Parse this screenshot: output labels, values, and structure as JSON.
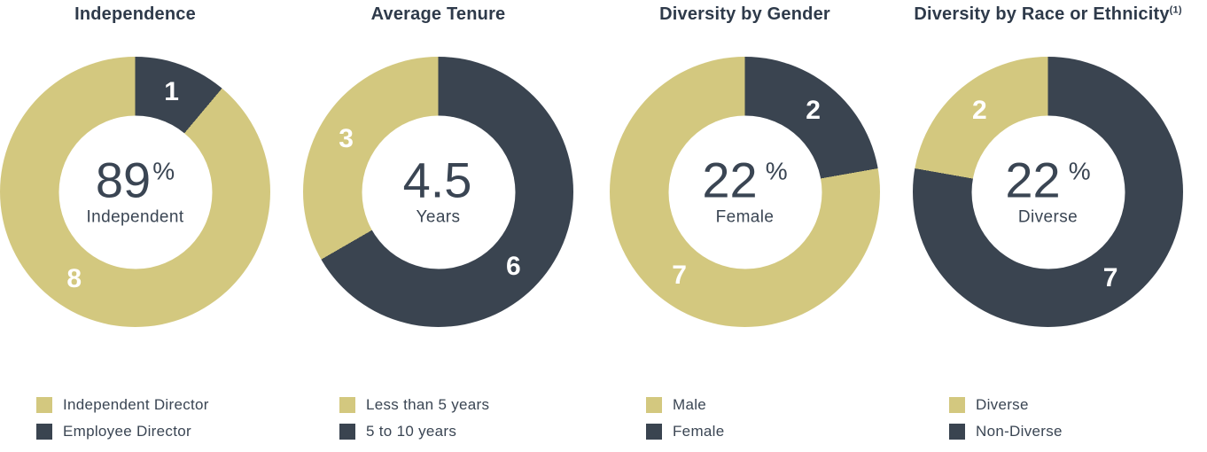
{
  "colors": {
    "tan": "#d3c87f",
    "dark": "#3a4450",
    "title_text": "#2e3a4a",
    "body_text": "#3a4553",
    "segment_label_text": "#ffffff",
    "background": "#ffffff"
  },
  "chart_data": [
    {
      "type": "donut",
      "title": "Independence",
      "title_sup": "",
      "center": {
        "value": "89",
        "unit": "%",
        "label": "Independent"
      },
      "start_angle_deg": 0,
      "segments": [
        {
          "name": "Employee Director",
          "value": 1,
          "color": "dark",
          "label_angle_deg": 20
        },
        {
          "name": "Independent Director",
          "value": 8,
          "color": "tan",
          "label_angle_deg": 215
        }
      ],
      "legend_position": "bottom",
      "legend": [
        {
          "color": "tan",
          "label": "Independent Director"
        },
        {
          "color": "dark",
          "label": "Employee Director"
        }
      ]
    },
    {
      "type": "donut",
      "title": "Average Tenure",
      "title_sup": "",
      "center": {
        "value": "4.5",
        "unit": "",
        "label": "Years"
      },
      "start_angle_deg": 0,
      "segments": [
        {
          "name": "5 to 10 years",
          "value": 6,
          "color": "dark",
          "label_angle_deg": 135
        },
        {
          "name": "Less than 5 years",
          "value": 3,
          "color": "tan",
          "label_angle_deg": 300
        }
      ],
      "legend_position": "bottom",
      "legend": [
        {
          "color": "tan",
          "label": "Less than 5 years"
        },
        {
          "color": "dark",
          "label": "5 to 10 years"
        }
      ]
    },
    {
      "type": "donut",
      "title": "Diversity by Gender",
      "title_sup": "",
      "center": {
        "value": "22",
        "unit": "%",
        "label": "Female"
      },
      "start_angle_deg": 0,
      "segments": [
        {
          "name": "Female",
          "value": 2,
          "color": "dark",
          "label_angle_deg": 40
        },
        {
          "name": "Male",
          "value": 7,
          "color": "tan",
          "label_angle_deg": 218
        }
      ],
      "legend_position": "bottom",
      "legend": [
        {
          "color": "tan",
          "label": "Male"
        },
        {
          "color": "dark",
          "label": "Female"
        }
      ]
    },
    {
      "type": "donut",
      "title": "Diversity by Race or Ethnicity",
      "title_sup": "(1)",
      "center": {
        "value": "22",
        "unit": "%",
        "label": "Diverse"
      },
      "start_angle_deg": 0,
      "segments": [
        {
          "name": "Non-Diverse",
          "value": 7,
          "color": "dark",
          "label_angle_deg": 144
        },
        {
          "name": "Diverse",
          "value": 2,
          "color": "tan",
          "label_angle_deg": 320
        }
      ],
      "legend_position": "bottom",
      "legend": [
        {
          "color": "tan",
          "label": "Diverse"
        },
        {
          "color": "dark",
          "label": "Non-Diverse"
        }
      ]
    }
  ]
}
